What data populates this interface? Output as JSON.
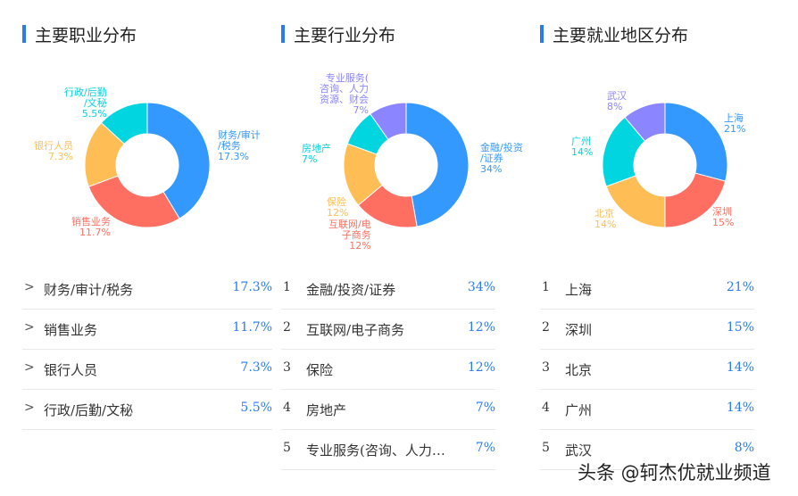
{
  "colors": {
    "blue": "#3399ff",
    "red": "#ff6f61",
    "yellow": "#ffbe55",
    "cyan": "#00d5e0",
    "purple": "#8b85ff",
    "accent": "#2a7bf0"
  },
  "chart_data": [
    {
      "type": "pie",
      "variant": "donut",
      "title": "主要职业分布",
      "categories": [
        "财务/审计/税务",
        "销售业务",
        "银行人员",
        "行政/后勤/文秘"
      ],
      "values": [
        17.3,
        11.7,
        7.3,
        5.5
      ],
      "labels": [
        "17.3%",
        "11.7%",
        "7.3%",
        "5.5%"
      ],
      "slice_labels": [
        [
          "财务/审计",
          "/税务",
          "17.3%"
        ],
        [
          "销售业务",
          "11.7%"
        ],
        [
          "银行人员",
          "7.3%"
        ],
        [
          "行政/后勤",
          "/文秘",
          "5.5%"
        ]
      ],
      "colors": [
        "#3399ff",
        "#ff6f61",
        "#ffbe55",
        "#00d5e0"
      ]
    },
    {
      "type": "pie",
      "variant": "donut",
      "title": "主要行业分布",
      "categories": [
        "金融/投资/证券",
        "互联网/电子商务",
        "保险",
        "房地产",
        "专业服务(咨询、人力资源、财会)"
      ],
      "values": [
        34,
        12,
        12,
        7,
        7
      ],
      "labels": [
        "34%",
        "12%",
        "12%",
        "7%",
        "7%"
      ],
      "slice_labels": [
        [
          "金融/投资",
          "/证券",
          "34%"
        ],
        [
          "互联网/电",
          "子商务",
          "12%"
        ],
        [
          "保险",
          "12%"
        ],
        [
          "房地产",
          "7%"
        ],
        [
          "专业服务(",
          "咨询、人力",
          "资源、财会",
          "7%"
        ]
      ],
      "colors": [
        "#3399ff",
        "#ff6f61",
        "#ffbe55",
        "#00d5e0",
        "#8b85ff"
      ]
    },
    {
      "type": "pie",
      "variant": "donut",
      "title": "主要就业地区分布",
      "categories": [
        "上海",
        "深圳",
        "北京",
        "广州",
        "武汉"
      ],
      "values": [
        21,
        15,
        14,
        14,
        8
      ],
      "labels": [
        "21%",
        "15%",
        "14%",
        "14%",
        "8%"
      ],
      "slice_labels": [
        [
          "上海",
          "21%"
        ],
        [
          "深圳",
          "15%"
        ],
        [
          "北京",
          "14%"
        ],
        [
          "广州",
          "14%"
        ],
        [
          "武汉",
          "8%"
        ]
      ],
      "colors": [
        "#3399ff",
        "#ff6f61",
        "#ffbe55",
        "#00d5e0",
        "#8b85ff"
      ]
    }
  ],
  "lists": [
    {
      "marker": ">",
      "items": [
        {
          "name": "财务/审计/税务",
          "value": "17.3%"
        },
        {
          "name": "销售业务",
          "value": "11.7%"
        },
        {
          "name": "银行人员",
          "value": "7.3%"
        },
        {
          "name": "行政/后勤/文秘",
          "value": "5.5%"
        }
      ]
    },
    {
      "items": [
        {
          "rank": "1",
          "name": "金融/投资/证券",
          "value": "34%"
        },
        {
          "rank": "2",
          "name": "互联网/电子商务",
          "value": "12%"
        },
        {
          "rank": "3",
          "name": "保险",
          "value": "12%"
        },
        {
          "rank": "4",
          "name": "房地产",
          "value": "7%"
        },
        {
          "rank": "5",
          "name": "专业服务(咨询、人力…",
          "value": "7%"
        }
      ]
    },
    {
      "items": [
        {
          "rank": "1",
          "name": "上海",
          "value": "21%"
        },
        {
          "rank": "2",
          "name": "深圳",
          "value": "15%"
        },
        {
          "rank": "3",
          "name": "北京",
          "value": "14%"
        },
        {
          "rank": "4",
          "name": "广州",
          "value": "14%"
        },
        {
          "rank": "5",
          "name": "武汉",
          "value": "8%"
        }
      ]
    }
  ],
  "watermark": "头条 @轲杰优就业频道"
}
